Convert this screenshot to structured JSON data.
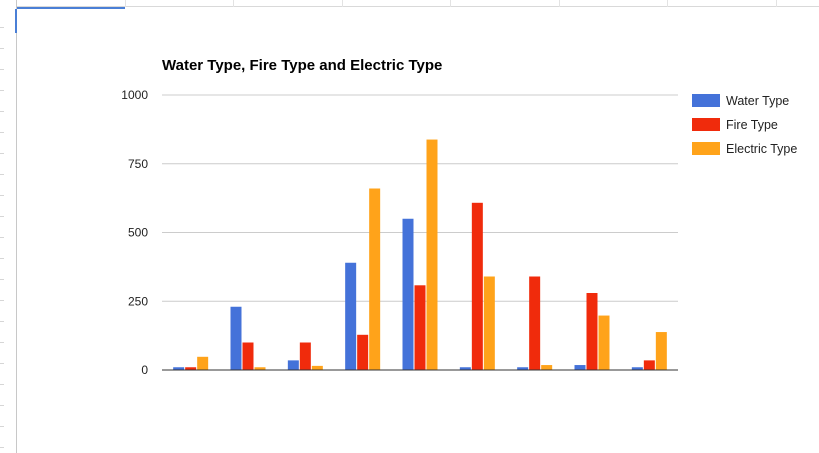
{
  "chart_data": {
    "type": "bar",
    "title": "Water Type, Fire Type and Electric Type",
    "xlabel": "",
    "ylabel": "",
    "ylim": [
      0,
      1000
    ],
    "yticks": [
      0,
      250,
      500,
      750,
      1000
    ],
    "ytick_labels": [
      "0",
      "250",
      "500",
      "750",
      "1000"
    ],
    "grid": true,
    "legend_position": "right",
    "categories": [
      "",
      "",
      "",
      "",
      "",
      "",
      "",
      "",
      ""
    ],
    "series": [
      {
        "name": "Water Type",
        "color": "#4472d9",
        "values": [
          10,
          230,
          35,
          390,
          550,
          10,
          10,
          18,
          10
        ]
      },
      {
        "name": "Fire Type",
        "color": "#f02b0c",
        "values": [
          10,
          100,
          100,
          128,
          308,
          608,
          340,
          280,
          35
        ]
      },
      {
        "name": "Electric Type",
        "color": "#ffa31a",
        "values": [
          48,
          10,
          15,
          660,
          838,
          340,
          18,
          198,
          138
        ]
      }
    ]
  }
}
